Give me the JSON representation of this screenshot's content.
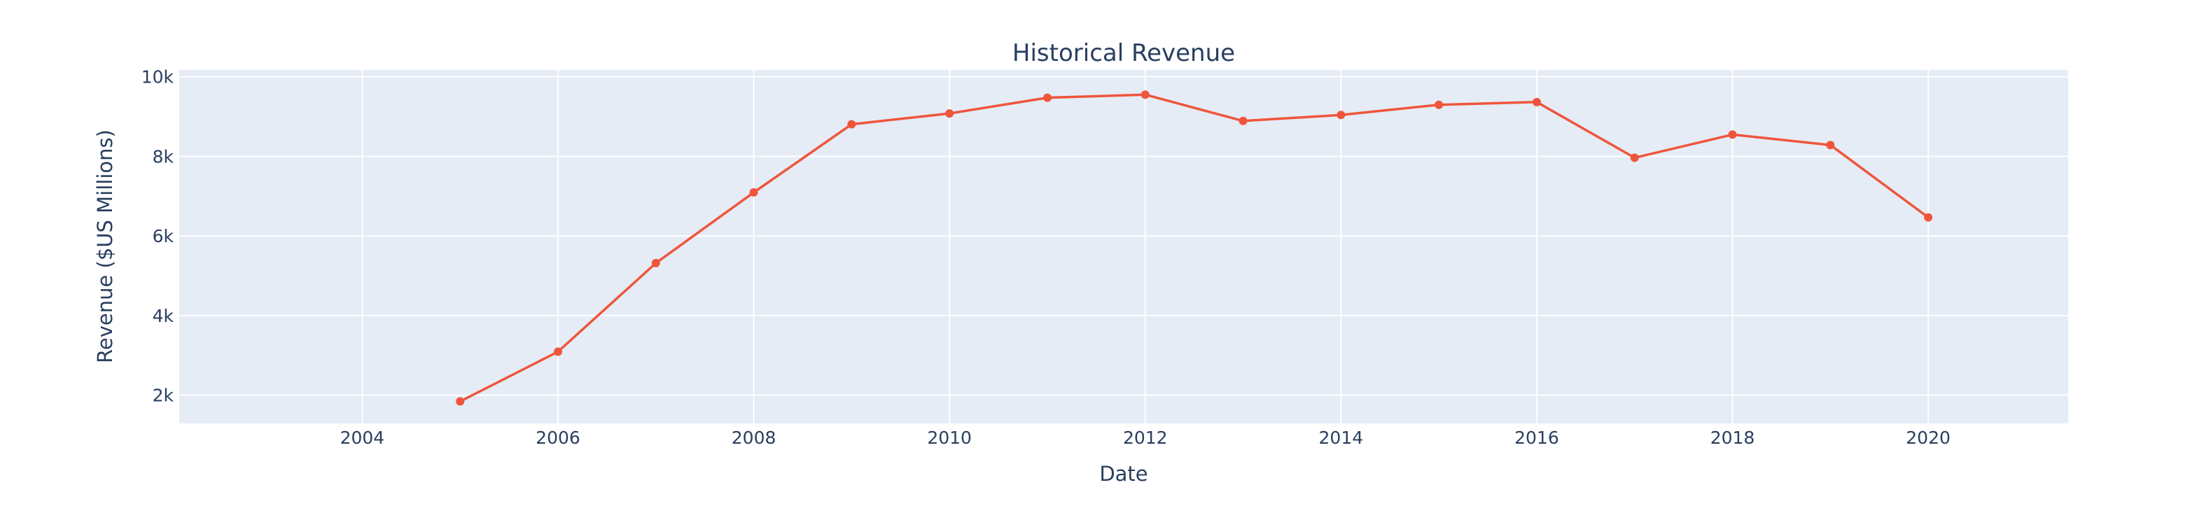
{
  "chart_data": {
    "type": "line",
    "title": "Historical Revenue",
    "xlabel": "Date",
    "ylabel": "Revenue ($US Millions)",
    "x": [
      2005,
      2006,
      2007,
      2008,
      2009,
      2010,
      2011,
      2012,
      2013,
      2014,
      2015,
      2016,
      2017,
      2018,
      2019,
      2020
    ],
    "series": [
      {
        "values": [
          1843,
          3092,
          5319,
          7094,
          8806,
          9078,
          9474,
          9551,
          8890,
          9040,
          9296,
          9364,
          7965,
          8547,
          8285,
          6466
        ]
      }
    ],
    "xlim": [
      2002.13,
      2021.43
    ],
    "ylim": [
      1290,
      10170
    ],
    "x_ticks": [
      2004,
      2006,
      2008,
      2010,
      2012,
      2014,
      2016,
      2018,
      2020
    ],
    "y_ticks": [
      2000,
      4000,
      6000,
      8000,
      10000
    ],
    "y_tick_labels": [
      "2k",
      "4k",
      "6k",
      "8k",
      "10k"
    ],
    "grid": true,
    "legend": "none",
    "colors": {
      "line": "#EF553B",
      "plot_background": "#E5ECF6",
      "paper_background": "#FFFFFF",
      "grid": "#FFFFFF",
      "text": "#2a3f5f"
    }
  }
}
